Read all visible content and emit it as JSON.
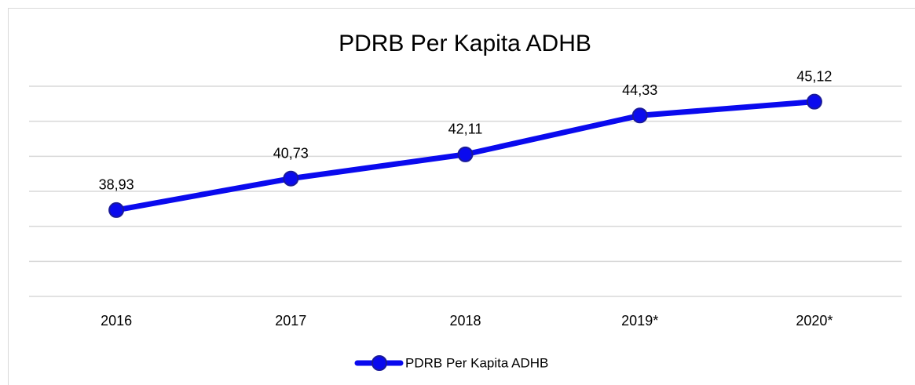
{
  "chart_data": {
    "type": "line",
    "title": "PDRB Per Kapita ADHB",
    "categories": [
      "2016",
      "2017",
      "2018",
      "2019*",
      "2020*"
    ],
    "series": [
      {
        "name": "PDRB Per Kapita ADHB",
        "color": "#0a0aee",
        "values": [
          38.93,
          40.73,
          42.11,
          44.33,
          45.12
        ],
        "value_labels": [
          "38,93",
          "40,73",
          "42,11",
          "44,33",
          "45,12"
        ]
      }
    ],
    "ylim": [
      34,
      46
    ],
    "yticks": [
      34,
      36,
      38,
      40,
      42,
      44,
      46
    ],
    "grid": true,
    "legend": "bottom"
  }
}
